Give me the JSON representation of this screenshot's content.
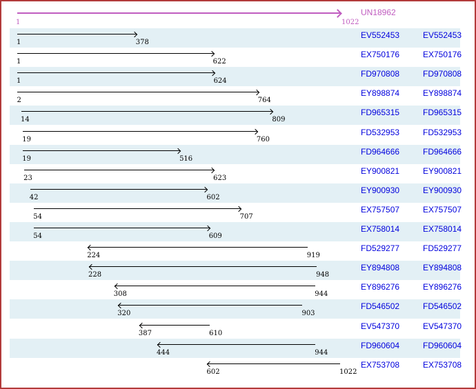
{
  "colors": {
    "border": "#b23a3a",
    "background": "#ffffff",
    "stripe": "#e3f0f5",
    "reference": "#c05cc0",
    "accession_link": "#0000dd",
    "arrow": "#000000",
    "coordinate_text": "#000000"
  },
  "reference": {
    "label": "UN18962",
    "start": 1,
    "end": 1022,
    "strand": "forward"
  },
  "reads": [
    {
      "label": "EV552453",
      "start": 1,
      "end": 378,
      "strand": "forward"
    },
    {
      "label": "EX750176",
      "start": 1,
      "end": 622,
      "strand": "forward"
    },
    {
      "label": "FD970808",
      "start": 1,
      "end": 624,
      "strand": "forward"
    },
    {
      "label": "EY898874",
      "start": 2,
      "end": 764,
      "strand": "forward"
    },
    {
      "label": "FD965315",
      "start": 14,
      "end": 809,
      "strand": "forward"
    },
    {
      "label": "FD532953",
      "start": 19,
      "end": 760,
      "strand": "forward"
    },
    {
      "label": "FD964666",
      "start": 19,
      "end": 516,
      "strand": "forward"
    },
    {
      "label": "EY900821",
      "start": 23,
      "end": 623,
      "strand": "forward"
    },
    {
      "label": "EY900930",
      "start": 42,
      "end": 602,
      "strand": "forward"
    },
    {
      "label": "EX757507",
      "start": 54,
      "end": 707,
      "strand": "forward"
    },
    {
      "label": "EX758014",
      "start": 54,
      "end": 609,
      "strand": "forward"
    },
    {
      "label": "FD529277",
      "start": 224,
      "end": 919,
      "strand": "reverse"
    },
    {
      "label": "EY894808",
      "start": 228,
      "end": 948,
      "strand": "reverse"
    },
    {
      "label": "EY896276",
      "start": 308,
      "end": 944,
      "strand": "reverse"
    },
    {
      "label": "FD546502",
      "start": 320,
      "end": 903,
      "strand": "reverse"
    },
    {
      "label": "EV547370",
      "start": 387,
      "end": 610,
      "strand": "reverse"
    },
    {
      "label": "FD960604",
      "start": 444,
      "end": 944,
      "strand": "reverse"
    },
    {
      "label": "EX753708",
      "start": 602,
      "end": 1022,
      "strand": "reverse"
    }
  ]
}
